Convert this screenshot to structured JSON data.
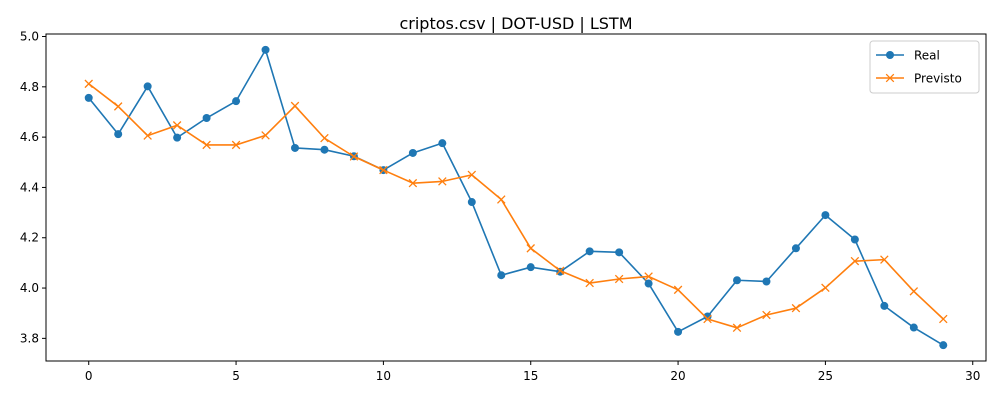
{
  "chart_data": {
    "type": "line",
    "title": "criptos.csv | DOT-USD | LSTM",
    "xlabel": "",
    "ylabel": "",
    "xlim": [
      -1.45,
      30.45
    ],
    "ylim": [
      3.71,
      5.01
    ],
    "xticks": [
      0,
      5,
      10,
      15,
      20,
      25,
      30
    ],
    "yticks": [
      3.8,
      4.0,
      4.2,
      4.4,
      4.6,
      4.8,
      5.0
    ],
    "xtick_labels": [
      "0",
      "5",
      "10",
      "15",
      "20",
      "25",
      "30"
    ],
    "ytick_labels": [
      "3.8",
      "4.0",
      "4.2",
      "4.4",
      "4.6",
      "4.8",
      "5.0"
    ],
    "grid": false,
    "legend_position": "top-right",
    "x": [
      0,
      1,
      2,
      3,
      4,
      5,
      6,
      7,
      8,
      9,
      10,
      11,
      12,
      13,
      14,
      15,
      16,
      17,
      18,
      19,
      20,
      21,
      22,
      23,
      24,
      25,
      26,
      27,
      28,
      29
    ],
    "series": [
      {
        "name": "Real",
        "color": "#1f77b4",
        "marker": "circle",
        "values": [
          4.756,
          4.612,
          4.802,
          4.598,
          4.676,
          4.743,
          4.947,
          4.557,
          4.55,
          4.524,
          4.469,
          4.537,
          4.576,
          4.342,
          4.051,
          4.083,
          4.065,
          4.146,
          4.142,
          4.018,
          3.826,
          3.887,
          4.031,
          4.026,
          4.158,
          4.29,
          4.193,
          3.929,
          3.843,
          3.773
        ]
      },
      {
        "name": "Previsto",
        "color": "#ff7f0e",
        "marker": "x",
        "values": [
          4.812,
          4.722,
          4.606,
          4.647,
          4.569,
          4.569,
          4.607,
          4.724,
          4.596,
          4.523,
          4.469,
          4.417,
          4.424,
          4.45,
          4.352,
          4.158,
          4.069,
          4.02,
          4.036,
          4.046,
          3.993,
          3.877,
          3.842,
          3.893,
          3.92,
          4.001,
          4.107,
          4.113,
          3.987,
          3.877
        ]
      }
    ]
  }
}
